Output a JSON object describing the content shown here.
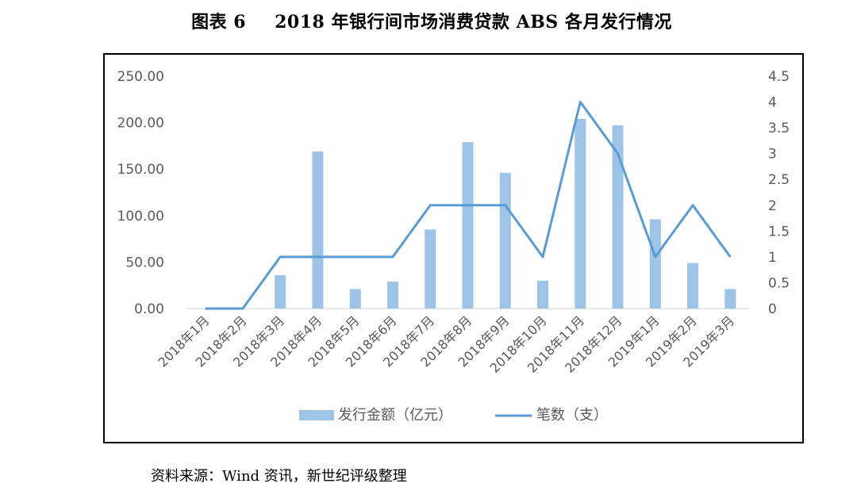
{
  "figure": {
    "label": "图表 6",
    "title": "2018 年银行间市场消费贷款 ABS 各月发行情况",
    "source": "资料来源：Wind 资讯，新世纪评级整理"
  },
  "chart_data": {
    "type": "bar+line",
    "categories": [
      "2018年1月",
      "2018年2月",
      "2018年3月",
      "2018年4月",
      "2018年5月",
      "2018年6月",
      "2018年7月",
      "2018年8月",
      "2018年9月",
      "2018年10月",
      "2018年11月",
      "2018年12月",
      "2019年1月",
      "2019年2月",
      "2019年3月"
    ],
    "series": [
      {
        "name": "发行金额（亿元）",
        "type": "bar",
        "axis": "left",
        "color": "#9DC3E6",
        "values": [
          0,
          0,
          36,
          169,
          21,
          29,
          85,
          179,
          146,
          30,
          204,
          197,
          96,
          49,
          21
        ]
      },
      {
        "name": "笔数（支）",
        "type": "line",
        "axis": "right",
        "color": "#5B9BD5",
        "values": [
          0,
          0,
          1,
          1,
          1,
          1,
          2,
          2,
          2,
          1,
          4,
          3,
          1,
          2,
          1
        ]
      }
    ],
    "y_left": {
      "min": 0,
      "max": 250,
      "ticks": [
        "0.00",
        "50.00",
        "100.00",
        "150.00",
        "200.00",
        "250.00"
      ]
    },
    "y_right": {
      "min": 0,
      "max": 4.5,
      "ticks": [
        "0",
        "0.5",
        "1",
        "1.5",
        "2",
        "2.5",
        "3",
        "3.5",
        "4",
        "4.5"
      ]
    },
    "grid": false,
    "legend": "bottom"
  }
}
